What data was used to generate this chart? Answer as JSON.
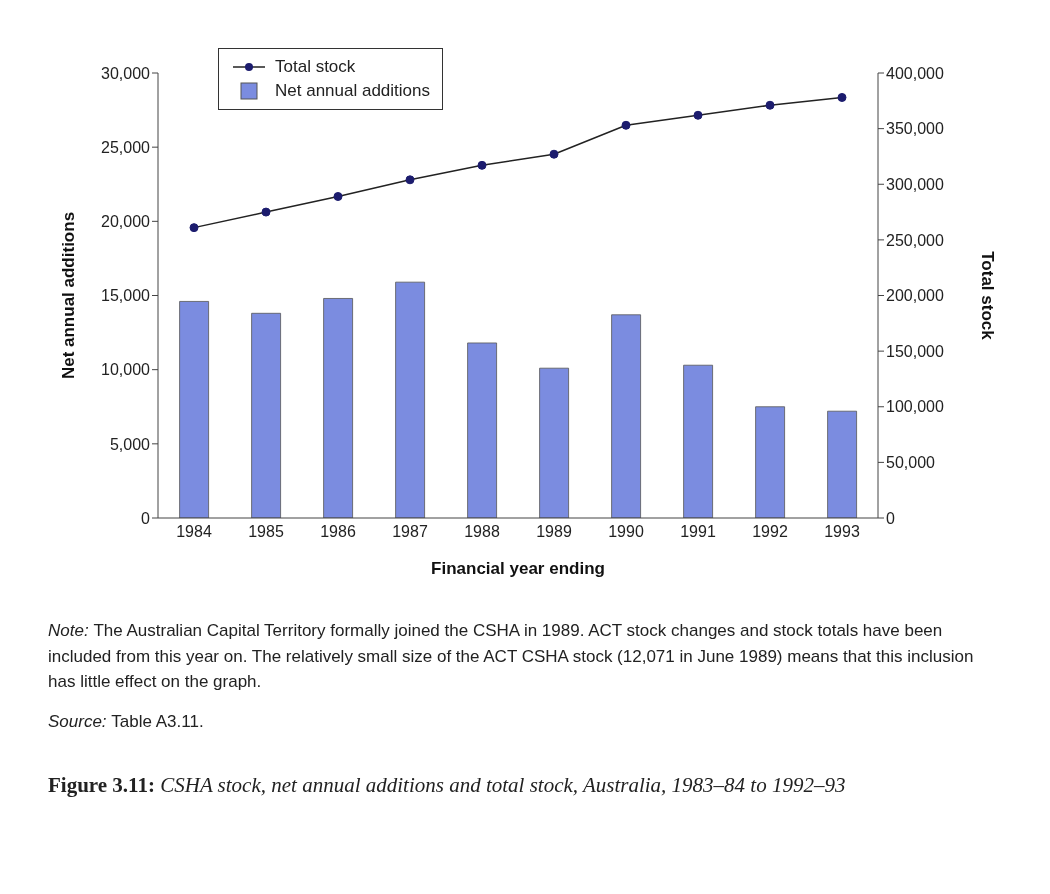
{
  "chart_data": {
    "type": "bar",
    "title": "Figure 3.11: CSHA stock, net annual additions and total stock, Australia, 1983–84 to 1992–93",
    "xlabel": "Financial year ending",
    "ylabel": "Net annual additions",
    "y2label": "Total stock",
    "categories": [
      "1984",
      "1985",
      "1986",
      "1987",
      "1988",
      "1989",
      "1990",
      "1991",
      "1992",
      "1993"
    ],
    "series": [
      {
        "name": "Total stock",
        "type": "line",
        "axis": "y2",
        "color": "#1c1c6e",
        "values": [
          261000,
          275000,
          289000,
          304000,
          317000,
          327000,
          353000,
          362000,
          371000,
          378000
        ]
      },
      {
        "name": "Net annual additions",
        "color": "#7b8ce0",
        "values": [
          14600,
          13800,
          14800,
          15900,
          11800,
          10100,
          13700,
          10300,
          7500,
          7200
        ]
      }
    ],
    "ylim": [
      0,
      30000
    ],
    "yticks": [
      0,
      {
        "value": 5000,
        "label": "5,000"
      },
      {
        "value": 10000,
        "label": "10,000"
      },
      {
        "value": 15000,
        "label": "15,000"
      },
      {
        "value": 20000,
        "label": "20,000"
      },
      {
        "value": 25000,
        "label": "25,000"
      },
      {
        "value": 30000,
        "label": "30,000"
      }
    ],
    "y2lim": [
      0,
      400000
    ],
    "y2ticks": [
      0,
      {
        "value": 50000,
        "label": "50,000"
      },
      {
        "value": 100000,
        "label": "100,000"
      },
      {
        "value": 150000,
        "label": "150,000"
      },
      {
        "value": 200000,
        "label": "200,000"
      },
      {
        "value": 250000,
        "label": "250,000"
      },
      {
        "value": 300000,
        "label": "300,000"
      },
      {
        "value": 350000,
        "label": "350,000"
      },
      {
        "value": 400000,
        "label": "400,000"
      }
    ],
    "legend": "top left",
    "marker": "circle",
    "annotations": [
      "Note: The Australian Capital Territory formally joined the CSHA in 1989. ACT stock changes and stock totals have been included from this year on. The relatively small size of the ACT CSHA stock (12,071 in June 1989) means that this inclusion has little effect on the graph.",
      "Source: Table A3.11."
    ]
  }
}
